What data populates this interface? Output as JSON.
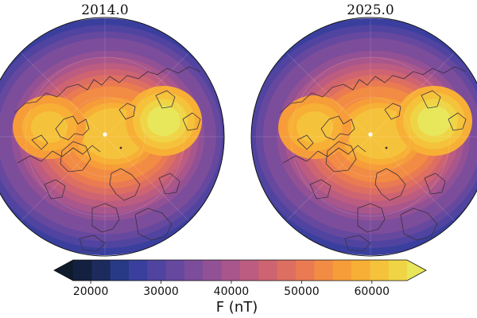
{
  "figure": {
    "panels": [
      {
        "title": "2014.0",
        "center_marker": "white-dot"
      },
      {
        "title": "2025.0",
        "center_marker": "white-dot"
      }
    ],
    "projection": "north-polar-orthographic",
    "colormap": [
      "#0d1b2a",
      "#14203f",
      "#1c2a5e",
      "#283a85",
      "#3a3f9e",
      "#5044a0",
      "#66489f",
      "#7c4d9b",
      "#935195",
      "#a8568c",
      "#bc5c80",
      "#ce6471",
      "#dd6e62",
      "#ea7a52",
      "#f28b43",
      "#f69d3a",
      "#f7af36",
      "#f5c23b",
      "#efd446",
      "#e8e65a"
    ]
  },
  "colorbar": {
    "label": "F (nT)",
    "ticks": [
      "20000",
      "30000",
      "40000",
      "50000",
      "60000"
    ],
    "tick_values": [
      20000,
      30000,
      40000,
      50000,
      60000
    ],
    "range": [
      17500,
      65000
    ],
    "extend": "both"
  }
}
